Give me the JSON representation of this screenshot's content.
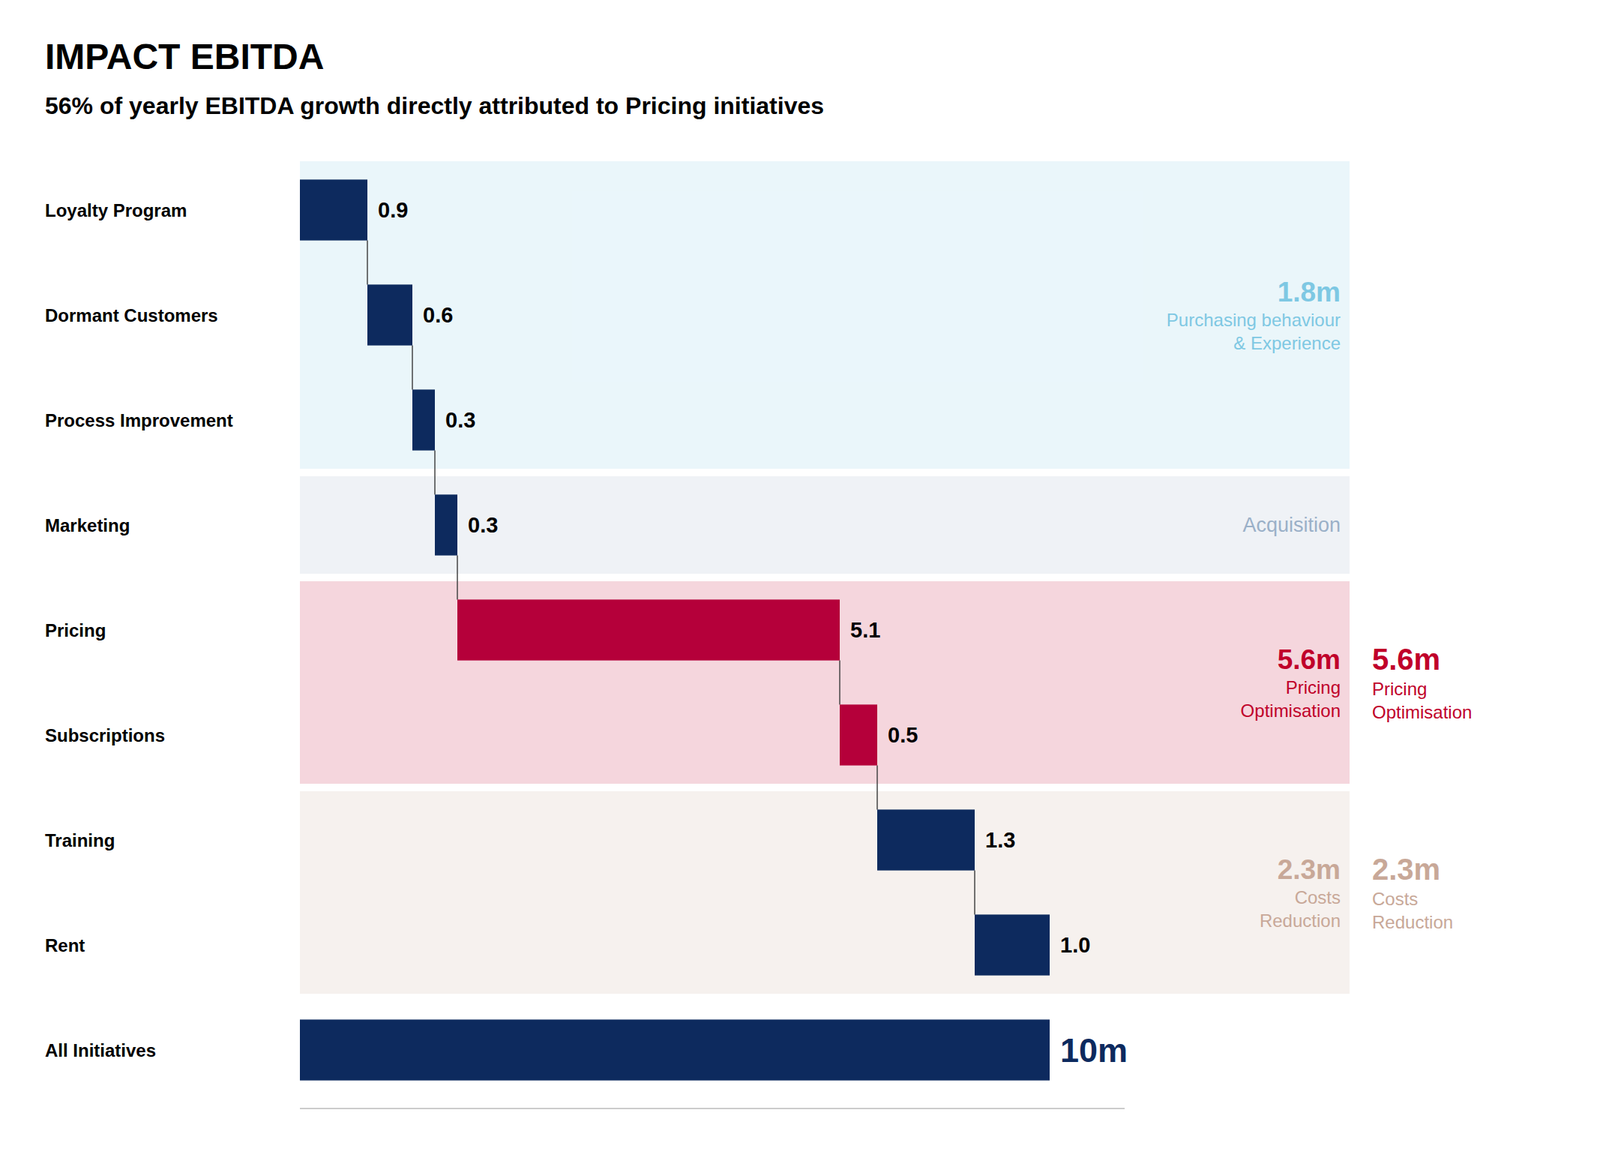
{
  "chart_data": {
    "type": "waterfall",
    "title": "IMPACT EBITDA",
    "subtitle": "56% of yearly EBITDA growth directly attributed to Pricing initiatives",
    "orientation": "horizontal",
    "categories": [
      "Loyalty Program",
      "Dormant Customers",
      "Process Improvement",
      "Marketing",
      "Pricing",
      "Subscriptions",
      "Training",
      "Rent",
      "All Initiatives"
    ],
    "values": [
      0.9,
      0.6,
      0.3,
      0.3,
      5.1,
      0.5,
      1.3,
      1.0,
      10.0
    ],
    "value_labels": [
      "0.9",
      "0.6",
      "0.3",
      "0.3",
      "5.1",
      "0.5",
      "1.3",
      "1.0",
      "10m"
    ],
    "colors": [
      "#0d2a5e",
      "#0d2a5e",
      "#0d2a5e",
      "#0d2a5e",
      "#b5003a",
      "#b5003a",
      "#0d2a5e",
      "#0d2a5e",
      "#0d2a5e"
    ],
    "data_labels": true,
    "xlim": [
      0,
      11
    ],
    "tick_labels": false,
    "grid": false,
    "groups": [
      {
        "categories": [
          "Loyalty Program",
          "Dormant Customers",
          "Process Improvement"
        ],
        "total": "1.8m",
        "label": [
          "Purchasing behaviour",
          "& Experience"
        ],
        "color": "#7ec8e3"
      },
      {
        "categories": [
          "Marketing"
        ],
        "label": [
          "Acquisition"
        ],
        "color": "#9ab0c8"
      },
      {
        "categories": [
          "Pricing",
          "Subscriptions"
        ],
        "total": "5.6m",
        "label": [
          "Pricing",
          "Optimisation"
        ],
        "color": "#c0002a"
      },
      {
        "categories": [
          "Training",
          "Rent"
        ],
        "total": "2.3m",
        "label": [
          "Costs",
          "Reduction"
        ],
        "color": "#c8a898"
      }
    ],
    "side_annotations": [
      {
        "categories": [
          "Pricing",
          "Subscriptions"
        ],
        "total": "5.6m",
        "label": [
          "Pricing",
          "Optimisation"
        ],
        "color": "#c0002a"
      },
      {
        "categories": [
          "Training",
          "Rent"
        ],
        "total": "2.3m",
        "label": [
          "Costs",
          "Reduction"
        ],
        "color": "#c8a898"
      }
    ]
  }
}
